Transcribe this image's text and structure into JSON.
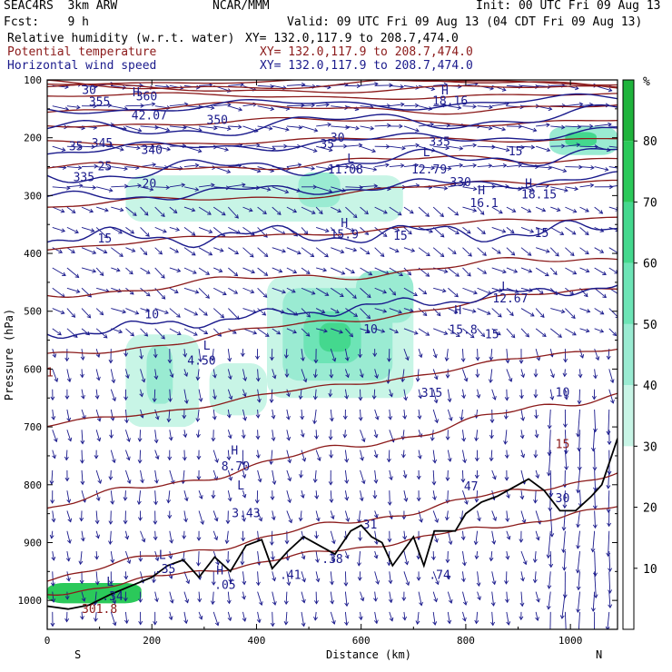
{
  "header": {
    "model": "SEAC4RS  3km ARW",
    "org": "NCAR/MMM",
    "init": "Init: 00 UTC Fri 09 Aug 13",
    "fcst": "Fcst:    9 h",
    "valid": "Valid: 09 UTC Fri 09 Aug 13 (04 CDT Fri 09 Aug 13)",
    "fields": [
      {
        "name": "Relative humidity (w.r.t. water)",
        "xy": "XY= 132.0,117.9 to 208.7,474.0",
        "color": "#000000"
      },
      {
        "name": "Potential temperature",
        "xy": "XY= 132.0,117.9 to 208.7,474.0",
        "color": "#8b1a1a"
      },
      {
        "name": "Horizontal wind speed",
        "xy": "XY= 132.0,117.9 to 208.7,474.0",
        "color": "#1a1a8c"
      }
    ]
  },
  "chart_data": {
    "type": "heatmap",
    "xlabel": "Distance (km)",
    "ylabel": "Pressure (hPa)",
    "xlim": [
      0,
      1090
    ],
    "ylim": [
      1050,
      100
    ],
    "x_ticks": [
      0,
      200,
      400,
      600,
      800,
      1000
    ],
    "y_ticks": [
      100,
      200,
      300,
      400,
      500,
      600,
      700,
      800,
      900,
      1000
    ],
    "x_end_labels": {
      "left": "S",
      "right": "N"
    },
    "colorbar": {
      "unit": "%",
      "ticks": [
        10,
        20,
        30,
        40,
        50,
        60,
        70,
        80
      ],
      "levels": [
        {
          "lo": 0,
          "hi": 30,
          "color": "#ffffff"
        },
        {
          "lo": 30,
          "hi": 40,
          "color": "#c8f5e6"
        },
        {
          "lo": 40,
          "hi": 50,
          "color": "#9aebd2"
        },
        {
          "lo": 50,
          "hi": 60,
          "color": "#6de4b6"
        },
        {
          "lo": 60,
          "hi": 70,
          "color": "#44d88e"
        },
        {
          "lo": 70,
          "hi": 80,
          "color": "#2bc95a"
        },
        {
          "lo": 80,
          "hi": 90,
          "color": "#1fb33c"
        }
      ]
    },
    "humidity_regions": [
      {
        "x": [
          150,
          680
        ],
        "p": [
          265,
          345
        ],
        "level": 1
      },
      {
        "x": [
          230,
          480
        ],
        "p": [
          285,
          330
        ],
        "level": 1
      },
      {
        "x": [
          480,
          560
        ],
        "p": [
          260,
          320
        ],
        "level": 2
      },
      {
        "x": [
          150,
          290
        ],
        "p": [
          540,
          700
        ],
        "level": 1
      },
      {
        "x": [
          190,
          240
        ],
        "p": [
          560,
          660
        ],
        "level": 2
      },
      {
        "x": [
          310,
          420
        ],
        "p": [
          590,
          680
        ],
        "level": 1
      },
      {
        "x": [
          420,
          700
        ],
        "p": [
          440,
          650
        ],
        "level": 1
      },
      {
        "x": [
          450,
          660
        ],
        "p": [
          460,
          620
        ],
        "level": 2
      },
      {
        "x": [
          490,
          600
        ],
        "p": [
          500,
          590
        ],
        "level": 3
      },
      {
        "x": [
          520,
          580
        ],
        "p": [
          520,
          570
        ],
        "level": 4
      },
      {
        "x": [
          590,
          700
        ],
        "p": [
          430,
          520
        ],
        "level": 2
      },
      {
        "x": [
          960,
          1090
        ],
        "p": [
          180,
          230
        ],
        "level": 2
      },
      {
        "x": [
          990,
          1050
        ],
        "p": [
          190,
          215
        ],
        "level": 4
      },
      {
        "x": [
          0,
          180
        ],
        "p": [
          970,
          1005
        ],
        "level": 5
      }
    ],
    "theta_contours": [
      {
        "p_left": 990,
        "p_right": 840
      },
      {
        "p_left": 960,
        "p_right": 780
      },
      {
        "p_left": 840,
        "p_right": 640
      },
      {
        "p_left": 700,
        "p_right": 560
      },
      {
        "p_left": 580,
        "p_right": 455
      },
      {
        "p_left": 470,
        "p_right": 405
      },
      {
        "p_left": 390,
        "p_right": 335
      },
      {
        "p_left": 320,
        "p_right": 270
      },
      {
        "p_left": 255,
        "p_right": 232
      },
      {
        "p_left": 210,
        "p_right": 200
      },
      {
        "p_left": 175,
        "p_right": 170
      },
      {
        "p_left": 150,
        "p_right": 148
      },
      {
        "p_left": 128,
        "p_right": 128
      },
      {
        "p_left": 115,
        "p_right": 116
      },
      {
        "p_left": 108,
        "p_right": 108
      },
      {
        "p_left": 103,
        "p_right": 103
      }
    ],
    "wind_contours": [
      {
        "p_left": 540,
        "p_right": 455
      },
      {
        "p_left": 375,
        "p_right": 360
      },
      {
        "p_left": 305,
        "p_right": 270
      },
      {
        "p_left": 265,
        "p_right": 225
      },
      {
        "p_left": 225,
        "p_right": 190
      },
      {
        "p_left": 190,
        "p_right": 160
      },
      {
        "p_left": 150,
        "p_right": 135
      }
    ],
    "terrain": [
      [
        0,
        1010
      ],
      [
        40,
        1015
      ],
      [
        80,
        1008
      ],
      [
        120,
        990
      ],
      [
        160,
        975
      ],
      [
        200,
        960
      ],
      [
        230,
        940
      ],
      [
        260,
        930
      ],
      [
        290,
        960
      ],
      [
        320,
        925
      ],
      [
        350,
        950
      ],
      [
        380,
        905
      ],
      [
        410,
        895
      ],
      [
        430,
        945
      ],
      [
        460,
        915
      ],
      [
        490,
        890
      ],
      [
        520,
        905
      ],
      [
        550,
        920
      ],
      [
        580,
        880
      ],
      [
        600,
        870
      ],
      [
        620,
        890
      ],
      [
        640,
        900
      ],
      [
        660,
        940
      ],
      [
        680,
        915
      ],
      [
        700,
        890
      ],
      [
        720,
        940
      ],
      [
        740,
        880
      ],
      [
        760,
        880
      ],
      [
        780,
        880
      ],
      [
        800,
        850
      ],
      [
        830,
        830
      ],
      [
        860,
        820
      ],
      [
        880,
        810
      ],
      [
        900,
        800
      ],
      [
        920,
        790
      ],
      [
        950,
        810
      ],
      [
        980,
        845
      ],
      [
        1010,
        845
      ],
      [
        1040,
        820
      ],
      [
        1060,
        800
      ],
      [
        1075,
        760
      ],
      [
        1090,
        720
      ]
    ],
    "labels_blue": [
      {
        "t": "30",
        "x": 80,
        "p": 124
      },
      {
        "t": "355",
        "x": 100,
        "p": 145
      },
      {
        "t": "360",
        "x": 190,
        "p": 135
      },
      {
        "t": "H",
        "x": 170,
        "p": 128
      },
      {
        "t": "42.07",
        "x": 195,
        "p": 168
      },
      {
        "t": "350",
        "x": 325,
        "p": 176
      },
      {
        "t": "35",
        "x": 55,
        "p": 222
      },
      {
        "t": "345",
        "x": 105,
        "p": 216
      },
      {
        "t": "340",
        "x": 200,
        "p": 228
      },
      {
        "t": "25",
        "x": 110,
        "p": 256
      },
      {
        "t": "335",
        "x": 70,
        "p": 275
      },
      {
        "t": "20",
        "x": 195,
        "p": 286
      },
      {
        "t": "15",
        "x": 110,
        "p": 381
      },
      {
        "t": "30",
        "x": 555,
        "p": 207
      },
      {
        "t": "35",
        "x": 535,
        "p": 218
      },
      {
        "t": "L",
        "x": 580,
        "p": 243
      },
      {
        "t": "11.08",
        "x": 570,
        "p": 262
      },
      {
        "t": "L",
        "x": 725,
        "p": 232
      },
      {
        "t": "12.79",
        "x": 730,
        "p": 262
      },
      {
        "t": "335",
        "x": 750,
        "p": 214
      },
      {
        "t": "330",
        "x": 790,
        "p": 284
      },
      {
        "t": "H",
        "x": 830,
        "p": 298
      },
      {
        "t": "16.1",
        "x": 835,
        "p": 320
      },
      {
        "t": "H",
        "x": 920,
        "p": 286
      },
      {
        "t": "18.15",
        "x": 940,
        "p": 305
      },
      {
        "t": "15",
        "x": 895,
        "p": 230
      },
      {
        "t": "H",
        "x": 568,
        "p": 354
      },
      {
        "t": "15.9",
        "x": 568,
        "p": 374
      },
      {
        "t": "15",
        "x": 675,
        "p": 376
      },
      {
        "t": "15",
        "x": 945,
        "p": 372
      },
      {
        "t": "H",
        "x": 760,
        "p": 125
      },
      {
        "t": "18.16",
        "x": 770,
        "p": 143
      },
      {
        "t": "10",
        "x": 200,
        "p": 512
      },
      {
        "t": "10",
        "x": 618,
        "p": 538
      },
      {
        "t": "L",
        "x": 305,
        "p": 566
      },
      {
        "t": "4.50",
        "x": 295,
        "p": 592
      },
      {
        "t": "L",
        "x": 875,
        "p": 464
      },
      {
        "t": "12.67",
        "x": 885,
        "p": 485
      },
      {
        "t": "H",
        "x": 785,
        "p": 505
      },
      {
        "t": "15.8",
        "x": 795,
        "p": 539
      },
      {
        "t": "15",
        "x": 850,
        "p": 547
      },
      {
        "t": "315",
        "x": 735,
        "p": 648
      },
      {
        "t": "10",
        "x": 985,
        "p": 647
      },
      {
        "t": "H",
        "x": 358,
        "p": 748
      },
      {
        "t": "8.70",
        "x": 360,
        "p": 775
      },
      {
        "t": "L",
        "x": 370,
        "p": 808
      },
      {
        "t": "3.43",
        "x": 380,
        "p": 856
      },
      {
        "t": "31",
        "x": 617,
        "p": 876
      },
      {
        "t": "47",
        "x": 810,
        "p": 810
      },
      {
        "t": "L",
        "x": 220,
        "p": 928
      },
      {
        "t": ".35",
        "x": 225,
        "p": 953
      },
      {
        "t": "H",
        "x": 330,
        "p": 955
      },
      {
        "t": ".05",
        "x": 340,
        "p": 980
      },
      {
        "t": ".41",
        "x": 465,
        "p": 963
      },
      {
        "t": ".38",
        "x": 545,
        "p": 935
      },
      {
        "t": ".74",
        "x": 750,
        "p": 963
      },
      {
        "t": "L",
        "x": 120,
        "p": 975
      },
      {
        "t": ".34",
        "x": 125,
        "p": 1000
      },
      {
        "t": "30",
        "x": 985,
        "p": 830
      }
    ],
    "labels_red": [
      {
        "t": "301.8",
        "x": 100,
        "p": 1022
      },
      {
        "t": "15",
        "x": 985,
        "p": 737
      },
      {
        "t": "1",
        "x": 5,
        "p": 613
      }
    ]
  }
}
